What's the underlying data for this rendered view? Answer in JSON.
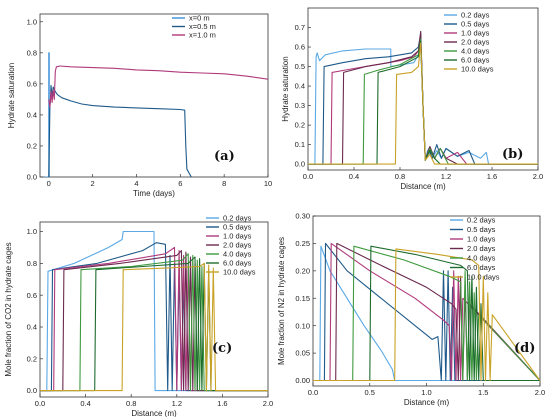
{
  "chart_data": [
    {
      "type": "line",
      "panel_label": "(a)",
      "xlabel": "Time (days)",
      "ylabel": "Hydrate saturation",
      "xlim": [
        -0.4,
        10
      ],
      "ylim": [
        0,
        1.05
      ],
      "xticks": [
        0,
        2,
        4,
        6,
        8,
        10
      ],
      "yticks": [
        0.0,
        0.2,
        0.4,
        0.6,
        0.8,
        1.0
      ],
      "x_tick_labels": [
        "0",
        "2",
        "4",
        "6",
        "8",
        "10"
      ],
      "y_tick_labels": [
        "0.0",
        "0.2",
        "0.4",
        "0.6",
        "0.8",
        "1.0"
      ],
      "legend_position": "top-right",
      "series": [
        {
          "name": "x=0  m",
          "color": "#3a8fd9",
          "x": [
            -0.2,
            0.0,
            0.0,
            0.02,
            0.02
          ],
          "y": [
            0.0,
            0.0,
            0.8,
            0.8,
            0.0
          ]
        },
        {
          "name": "x=0.5 m",
          "color": "#1f5a8a",
          "x": [
            0.0,
            0.05,
            0.08,
            0.1,
            0.15,
            0.2,
            0.3,
            0.4,
            0.6,
            1.0,
            1.5,
            2.0,
            3.0,
            4.0,
            5.0,
            6.0,
            6.2,
            6.25,
            6.3,
            6.5
          ],
          "y": [
            0.0,
            0.45,
            0.5,
            0.59,
            0.52,
            0.58,
            0.55,
            0.53,
            0.51,
            0.49,
            0.47,
            0.46,
            0.45,
            0.445,
            0.44,
            0.435,
            0.43,
            0.2,
            0.05,
            0.0
          ]
        },
        {
          "name": "x=1.0 m",
          "color": "#b03a7c",
          "x": [
            0.0,
            0.05,
            0.1,
            0.15,
            0.2,
            0.25,
            0.3,
            0.35,
            0.5,
            1.0,
            2.0,
            3.0,
            4.0,
            5.0,
            6.0,
            7.0,
            8.0,
            9.0,
            10.0
          ],
          "y": [
            0.5,
            0.45,
            0.55,
            0.48,
            0.56,
            0.5,
            0.68,
            0.71,
            0.715,
            0.71,
            0.705,
            0.7,
            0.69,
            0.685,
            0.675,
            0.67,
            0.665,
            0.65,
            0.63
          ]
        }
      ]
    },
    {
      "type": "line",
      "panel_label": "(b)",
      "xlabel": "Distance (m)",
      "ylabel": "Hydrate saturation",
      "xlim": [
        0,
        2.0
      ],
      "ylim": [
        -0.03,
        0.8
      ],
      "xticks": [
        0.0,
        0.4,
        0.8,
        1.2,
        1.6,
        2.0
      ],
      "yticks": [
        0.0,
        0.1,
        0.2,
        0.3,
        0.4,
        0.5,
        0.6,
        0.7
      ],
      "x_tick_labels": [
        "0.0",
        "0.4",
        "0.8",
        "1.2",
        "1.6",
        "2.0"
      ],
      "y_tick_labels": [
        "0.0",
        "0.1",
        "0.2",
        "0.3",
        "0.4",
        "0.5",
        "0.6",
        "0.7"
      ],
      "legend_position": "top-right",
      "series": [
        {
          "name": "0.2 days",
          "color": "#5aa9e6",
          "x": [
            0,
            0.06,
            0.07,
            0.08,
            0.1,
            0.15,
            0.3,
            0.5,
            0.7,
            0.72,
            0.72,
            0.92,
            0.96,
            0.98,
            1.0,
            1.02,
            1.04,
            1.08,
            1.12,
            1.16,
            1.2,
            1.3,
            1.4,
            1.5,
            1.55,
            1.57,
            2.0
          ],
          "y": [
            0,
            0,
            0.55,
            0.57,
            0.53,
            0.56,
            0.58,
            0.59,
            0.59,
            0.59,
            0.5,
            0.52,
            0.56,
            0.6,
            0.3,
            0.02,
            0.07,
            0.03,
            0.07,
            0.03,
            0.08,
            0.04,
            0.06,
            0.03,
            0.06,
            0.0,
            0.0
          ]
        },
        {
          "name": "0.5 days",
          "color": "#1f5a8a",
          "x": [
            0,
            0.13,
            0.14,
            0.3,
            0.5,
            0.7,
            0.9,
            0.96,
            0.98,
            1.0,
            1.02,
            1.05,
            1.08,
            1.12,
            1.16,
            1.2,
            1.3,
            1.4,
            1.45,
            2.0
          ],
          "y": [
            0,
            0,
            0.5,
            0.52,
            0.54,
            0.55,
            0.57,
            0.6,
            0.67,
            0.3,
            0.02,
            0.08,
            0.03,
            0.1,
            0.03,
            0.08,
            0.04,
            0.07,
            0.0,
            0.0
          ]
        },
        {
          "name": "1.0 days",
          "color": "#b03a7c",
          "x": [
            0,
            0.2,
            0.21,
            0.4,
            0.6,
            0.8,
            0.92,
            0.96,
            0.98,
            1.0,
            1.02,
            1.06,
            1.1,
            1.15,
            1.2,
            1.3,
            1.38,
            2.0
          ],
          "y": [
            0,
            0,
            0.47,
            0.49,
            0.51,
            0.53,
            0.55,
            0.58,
            0.66,
            0.3,
            0.02,
            0.09,
            0.03,
            0.08,
            0.03,
            0.06,
            0.0,
            0.0
          ]
        },
        {
          "name": "2.0 days",
          "color": "#6b2a4e",
          "x": [
            0,
            0.3,
            0.31,
            0.5,
            0.7,
            0.9,
            0.96,
            0.98,
            1.0,
            1.02,
            1.06,
            1.1,
            1.15,
            1.2,
            1.3,
            2.0
          ],
          "y": [
            0,
            0,
            0.47,
            0.5,
            0.52,
            0.55,
            0.58,
            0.68,
            0.3,
            0.02,
            0.09,
            0.03,
            0.08,
            0.03,
            0.0,
            0.0
          ]
        },
        {
          "name": "4.0 days",
          "color": "#3f9a3f",
          "x": [
            0,
            0.48,
            0.49,
            0.6,
            0.8,
            0.96,
            0.98,
            1.0,
            1.02,
            1.06,
            1.1,
            1.15,
            1.22,
            2.0
          ],
          "y": [
            0,
            0,
            0.46,
            0.48,
            0.51,
            0.56,
            0.64,
            0.3,
            0.02,
            0.08,
            0.03,
            0.08,
            0.0,
            0.0
          ]
        },
        {
          "name": "6.0 days",
          "color": "#1e6b2e",
          "x": [
            0,
            0.6,
            0.61,
            0.8,
            0.96,
            0.98,
            1.0,
            1.02,
            1.06,
            1.1,
            1.15,
            2.0
          ],
          "y": [
            0,
            0,
            0.47,
            0.5,
            0.55,
            0.63,
            0.3,
            0.02,
            0.07,
            0.03,
            0.0,
            0.0
          ]
        },
        {
          "name": "10.0 days",
          "color": "#c9a227",
          "x": [
            0,
            0.76,
            0.77,
            0.9,
            0.96,
            0.98,
            1.0,
            1.02,
            1.06,
            1.1,
            2.0
          ],
          "y": [
            0,
            0,
            0.46,
            0.47,
            0.5,
            0.62,
            0.3,
            0.02,
            0.05,
            0.0,
            0.0
          ]
        }
      ]
    },
    {
      "type": "line",
      "panel_label": "(c)",
      "xlabel": "Distance (m)",
      "ylabel": "Mole fraction of CO2 in hydrate cages",
      "xlim": [
        0,
        2.0
      ],
      "ylim": [
        -0.04,
        1.06
      ],
      "xticks": [
        0.0,
        0.4,
        0.8,
        1.2,
        1.6,
        2.0
      ],
      "yticks": [
        0.0,
        0.2,
        0.4,
        0.6,
        0.8,
        1.0
      ],
      "x_tick_labels": [
        "0.0",
        "0.4",
        "0.8",
        "1.2",
        "1.6",
        "2.0"
      ],
      "y_tick_labels": [
        "0.0",
        "0.2",
        "0.4",
        "0.6",
        "0.8",
        "1.0"
      ],
      "legend_position": "top-right",
      "series": [
        {
          "name": "0.2 days",
          "color": "#5aa9e6",
          "x": [
            0,
            0.06,
            0.07,
            0.3,
            0.6,
            0.72,
            0.73,
            1.0,
            1.01,
            2.0
          ],
          "y": [
            0,
            0,
            0.75,
            0.8,
            0.9,
            0.95,
            1.0,
            1.0,
            0,
            0
          ]
        },
        {
          "name": "0.5 days",
          "color": "#1f5a8a",
          "x": [
            0,
            0.1,
            0.11,
            0.5,
            0.9,
            1.02,
            1.1,
            1.12,
            1.14,
            1.16,
            1.18,
            1.2,
            1.22,
            1.24,
            1.26,
            1.28,
            2.0
          ],
          "y": [
            0,
            0,
            0.76,
            0.8,
            0.88,
            0.93,
            0.92,
            0.0,
            0.85,
            0.0,
            0.8,
            0.0,
            0.75,
            0.0,
            0.7,
            0.0,
            0.0
          ]
        },
        {
          "name": "1.0 days",
          "color": "#b03a7c",
          "x": [
            0,
            0.12,
            0.13,
            0.6,
            1.1,
            1.18,
            1.2,
            1.22,
            1.24,
            1.26,
            1.28,
            1.3,
            1.32,
            2.0
          ],
          "y": [
            0,
            0,
            0.76,
            0.8,
            0.86,
            0.9,
            0.0,
            0.88,
            0.0,
            0.85,
            0.0,
            0.8,
            0.0,
            0.0
          ]
        },
        {
          "name": "2.0 days",
          "color": "#6b2a4e",
          "x": [
            0,
            0.2,
            0.21,
            0.7,
            1.2,
            1.24,
            1.26,
            1.28,
            1.3,
            1.32,
            1.34,
            1.36,
            1.38,
            2.0
          ],
          "y": [
            0,
            0,
            0.76,
            0.8,
            0.85,
            0.88,
            0.0,
            0.87,
            0.0,
            0.84,
            0.0,
            0.8,
            0.0,
            0.0
          ]
        },
        {
          "name": "4.0 days",
          "color": "#3f9a3f",
          "x": [
            0,
            0.35,
            0.36,
            0.8,
            1.25,
            1.3,
            1.32,
            1.34,
            1.36,
            1.38,
            1.4,
            1.42,
            1.44,
            2.0
          ],
          "y": [
            0,
            0,
            0.76,
            0.78,
            0.82,
            0.86,
            0.0,
            0.85,
            0.0,
            0.82,
            0.0,
            0.78,
            0.0,
            0.0
          ]
        },
        {
          "name": "6.0 days",
          "color": "#1e6b2e",
          "x": [
            0,
            0.48,
            0.49,
            0.9,
            1.3,
            1.36,
            1.38,
            1.4,
            1.42,
            1.44,
            1.46,
            1.48,
            1.5,
            2.0
          ],
          "y": [
            0,
            0,
            0.76,
            0.78,
            0.8,
            0.84,
            0.0,
            0.83,
            0.0,
            0.8,
            0.0,
            0.76,
            0.0,
            0.0
          ]
        },
        {
          "name": "10.0 days",
          "color": "#c9a227",
          "x": [
            0,
            0.72,
            0.73,
            1.1,
            1.4,
            1.44,
            1.46,
            1.48,
            1.5,
            1.52,
            1.54,
            1.56,
            2.0
          ],
          "y": [
            0,
            0,
            0.76,
            0.77,
            0.78,
            0.8,
            0.0,
            0.79,
            0.0,
            0.77,
            0.0,
            0.0,
            0.0
          ]
        }
      ]
    },
    {
      "type": "line",
      "panel_label": "(d)",
      "xlabel": "Distance (m)",
      "ylabel": "Mole fraction of N2 in hydrate cages",
      "xlim": [
        0,
        2.0
      ],
      "ylim": [
        -0.01,
        0.3
      ],
      "xticks": [
        0.0,
        0.5,
        1.0,
        1.5,
        2.0
      ],
      "yticks": [
        0.0,
        0.05,
        0.1,
        0.15,
        0.2,
        0.25,
        0.3
      ],
      "x_tick_labels": [
        "0.0",
        "0.5",
        "1.0",
        "1.5",
        "2.0"
      ],
      "y_tick_labels": [
        "0.00",
        "0.05",
        "0.10",
        "0.15",
        "0.20",
        "0.25",
        "0.30"
      ],
      "legend_position": "top-right",
      "series": [
        {
          "name": "0.2 days",
          "color": "#5aa9e6",
          "x": [
            0,
            0.06,
            0.07,
            0.15,
            0.3,
            0.45,
            0.6,
            0.7,
            0.72,
            0.73,
            2.0
          ],
          "y": [
            0,
            0,
            0.245,
            0.2,
            0.15,
            0.1,
            0.055,
            0.02,
            0.0,
            0.0,
            0.0
          ]
        },
        {
          "name": "0.5 days",
          "color": "#1f5a8a",
          "x": [
            0,
            0.1,
            0.11,
            0.3,
            0.6,
            0.9,
            1.05,
            1.1,
            1.13,
            1.15,
            1.17,
            1.19,
            1.21,
            1.23,
            1.25,
            2.0
          ],
          "y": [
            0,
            0,
            0.25,
            0.2,
            0.15,
            0.1,
            0.075,
            0.08,
            0.0,
            0.2,
            0.0,
            0.2,
            0.0,
            0.17,
            0.0,
            0.0
          ]
        },
        {
          "name": "1.0 days",
          "color": "#b03a7c",
          "x": [
            0,
            0.15,
            0.16,
            0.5,
            0.9,
            1.15,
            1.2,
            1.22,
            1.24,
            1.26,
            1.28,
            1.3,
            1.32,
            2.0
          ],
          "y": [
            0,
            0,
            0.25,
            0.2,
            0.15,
            0.11,
            0.1,
            0.0,
            0.2,
            0.0,
            0.19,
            0.0,
            0.15,
            0.0
          ]
        },
        {
          "name": "2.0 days",
          "color": "#6b2a4e",
          "x": [
            0,
            0.2,
            0.21,
            0.6,
            1.0,
            1.22,
            1.26,
            1.28,
            1.3,
            1.32,
            1.34,
            1.36,
            1.38,
            2.0
          ],
          "y": [
            0,
            0,
            0.25,
            0.21,
            0.17,
            0.14,
            0.13,
            0.0,
            0.19,
            0.0,
            0.17,
            0.0,
            0.14,
            0.0
          ]
        },
        {
          "name": "4.0 days",
          "color": "#3f9a3f",
          "x": [
            0,
            0.35,
            0.36,
            0.8,
            1.2,
            1.3,
            1.32,
            1.34,
            1.36,
            1.38,
            1.4,
            1.42,
            1.44,
            1.46,
            2.0
          ],
          "y": [
            0,
            0,
            0.245,
            0.22,
            0.19,
            0.18,
            0.0,
            0.2,
            0.0,
            0.18,
            0.0,
            0.16,
            0.0,
            0.12,
            0.0
          ]
        },
        {
          "name": "6.0 days",
          "color": "#1e6b2e",
          "x": [
            0,
            0.5,
            0.51,
            0.9,
            1.3,
            1.36,
            1.38,
            1.4,
            1.42,
            1.44,
            1.46,
            1.48,
            1.5,
            2.0
          ],
          "y": [
            0,
            0,
            0.245,
            0.23,
            0.21,
            0.2,
            0.0,
            0.19,
            0.0,
            0.17,
            0.0,
            0.14,
            0.0,
            0.0
          ]
        },
        {
          "name": "10.0 days",
          "color": "#c9a227",
          "x": [
            0,
            0.72,
            0.73,
            1.1,
            1.4,
            1.46,
            1.48,
            1.5,
            1.52,
            1.54,
            1.56,
            1.58,
            2.0
          ],
          "y": [
            0,
            0,
            0.24,
            0.23,
            0.22,
            0.21,
            0.0,
            0.19,
            0.0,
            0.16,
            0.0,
            0.12,
            0.0
          ]
        }
      ]
    }
  ]
}
